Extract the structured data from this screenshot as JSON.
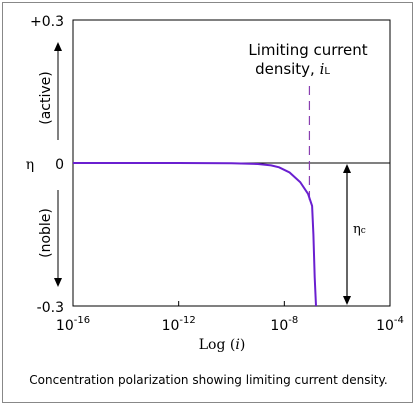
{
  "chart_data": {
    "type": "line",
    "xlabel": "Log (i)",
    "xlabel_main": "Log (",
    "xlabel_var": "i",
    "xlabel_end": ")",
    "ylabel": "η",
    "xlim": [
      -16,
      -4
    ],
    "ylim": [
      -0.3,
      0.3
    ],
    "x_ticks": [
      {
        "value": -16,
        "base": "10",
        "exp": "-16"
      },
      {
        "value": -12,
        "base": "10",
        "exp": "-12"
      },
      {
        "value": -8,
        "base": "10",
        "exp": "-8"
      },
      {
        "value": -4,
        "base": "10",
        "exp": "-4"
      }
    ],
    "y_ticks": [
      {
        "value": 0.3,
        "label": "+0.3"
      },
      {
        "value": 0,
        "label": "0"
      },
      {
        "value": -0.3,
        "label": "-0.3"
      }
    ],
    "series": [
      {
        "color": "#6a1fd0",
        "x": [
          -16,
          -12,
          -10,
          -9,
          -8.5,
          -8.2,
          -7.8,
          -7.4,
          -7.1,
          -6.95,
          -6.9,
          -6.85,
          -6.8
        ],
        "y": [
          0,
          0,
          -0.0005,
          -0.002,
          -0.005,
          -0.009,
          -0.02,
          -0.04,
          -0.065,
          -0.09,
          -0.15,
          -0.24,
          -0.3
        ]
      }
    ],
    "limiting_line_x": -7.05,
    "annotations": {
      "active": "(active)",
      "noble": "(noble)",
      "limiting_line1": "Limiting current",
      "limiting_line2": "density, ",
      "limiting_var": "i",
      "limiting_sub": "L",
      "eta_c": "η",
      "eta_c_sub": "c"
    },
    "colors": {
      "curve": "#6a1fd0",
      "dashed": "#8a3fb0",
      "axes": "#000000"
    }
  },
  "caption": "Concentration polarization showing limiting current density."
}
